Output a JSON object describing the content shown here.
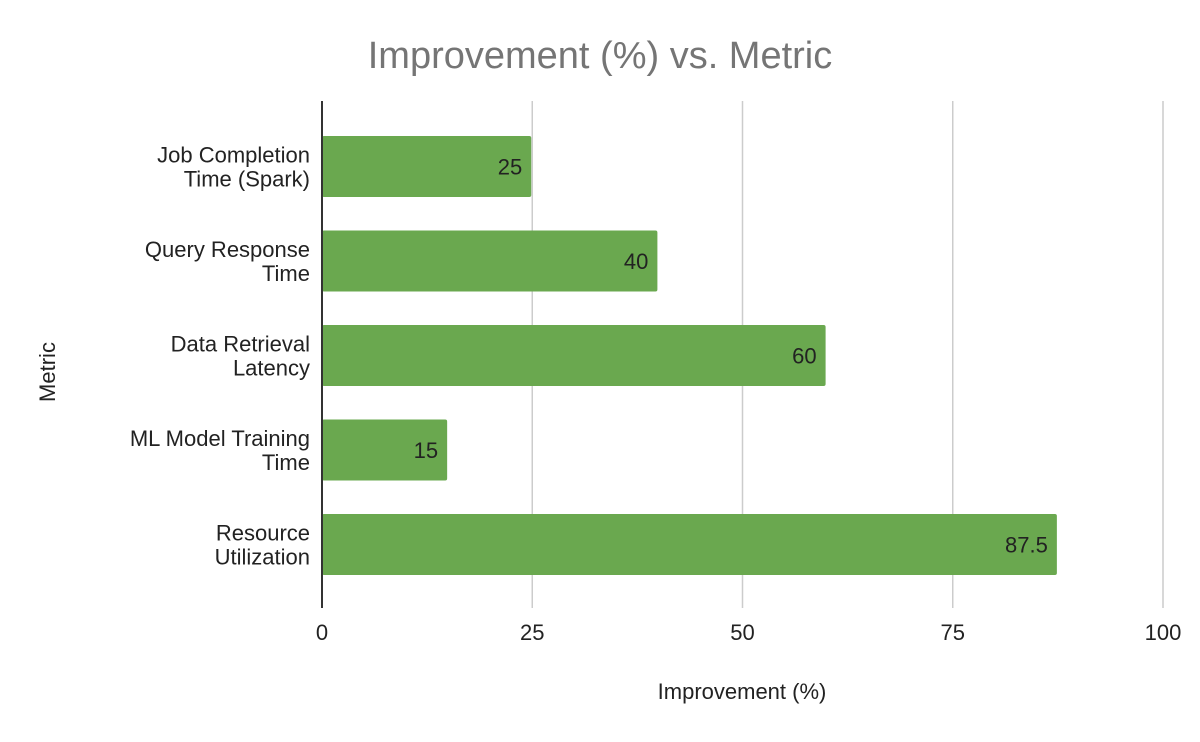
{
  "chart_data": {
    "type": "bar",
    "orientation": "horizontal",
    "title": "Improvement (%) vs. Metric",
    "xlabel": "Improvement (%)",
    "ylabel": "Metric",
    "categories": [
      [
        "Job Completion",
        "Time (Spark)"
      ],
      [
        "Query Response",
        "Time"
      ],
      [
        "Data Retrieval",
        "Latency"
      ],
      [
        "ML Model Training",
        "Time"
      ],
      [
        "Resource",
        "Utilization"
      ]
    ],
    "values": [
      25,
      40,
      60,
      15,
      87.5
    ],
    "value_labels": [
      "25",
      "40",
      "60",
      "15",
      "87.5"
    ],
    "xlim": [
      0,
      100
    ],
    "xticks": [
      0,
      25,
      50,
      75,
      100
    ],
    "xtick_labels": [
      "0",
      "25",
      "50",
      "75",
      "100"
    ],
    "grid": true,
    "legend": "none",
    "colors": {
      "bar": "#6aa84f",
      "title": "#757575",
      "grid": "#cccccc",
      "axis": "#333333"
    }
  }
}
